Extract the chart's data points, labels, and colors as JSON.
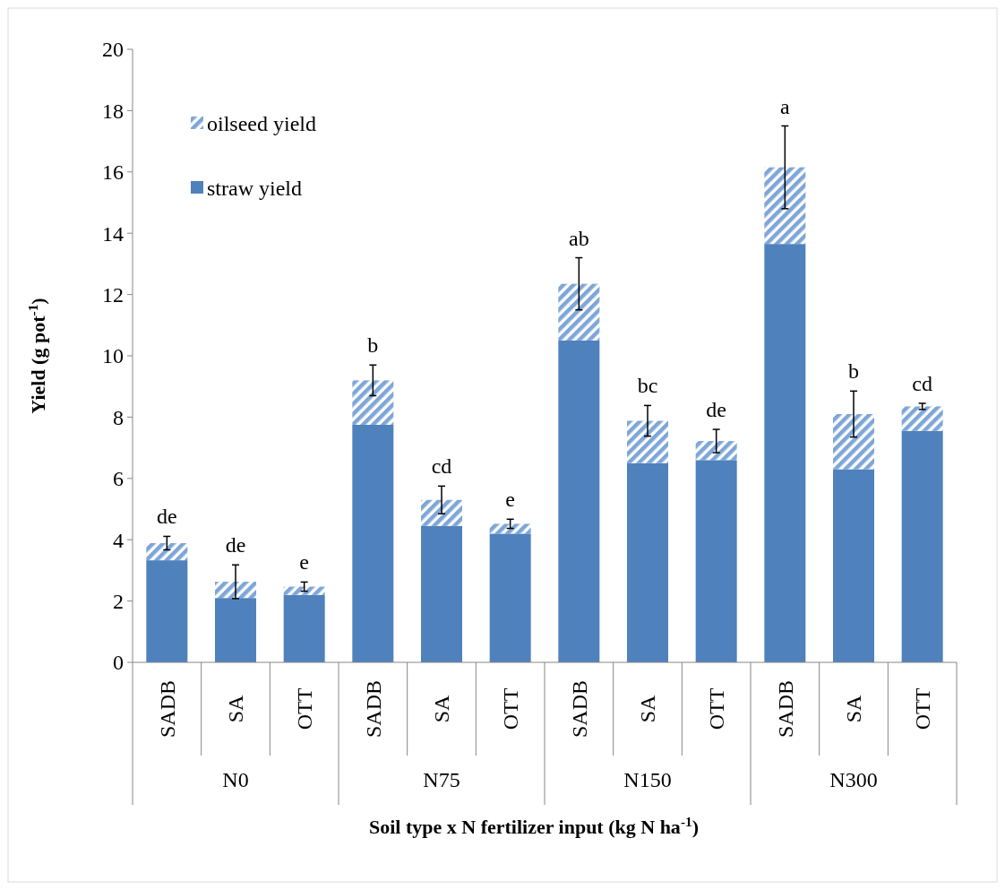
{
  "chart_data": {
    "type": "bar",
    "stacked": true,
    "xlabel": "Soil type x N fertilizer input (kg N ha$^{-1}$)",
    "ylabel": "Yield (g pot$^{-1}$)",
    "categories": [
      "SADB",
      "SA",
      "OTT",
      "SADB",
      "SA",
      "OTT",
      "SADB",
      "SA",
      "OTT",
      "SADB",
      "SA",
      "OTT"
    ],
    "series": [
      {
        "name": "straw yield",
        "color": "#4f81bd",
        "values": [
          3.33,
          2.1,
          2.2,
          7.75,
          4.45,
          4.2,
          10.5,
          6.5,
          6.6,
          13.65,
          6.3,
          7.55
        ]
      },
      {
        "name": "oilseed yield",
        "color": "#7ea6d8",
        "values": [
          0.56,
          0.53,
          0.27,
          1.45,
          0.85,
          0.32,
          1.85,
          1.38,
          0.62,
          2.5,
          1.8,
          0.8
        ],
        "errors": [
          0.22,
          0.55,
          0.15,
          0.5,
          0.45,
          0.15,
          0.85,
          0.5,
          0.38,
          1.35,
          0.75,
          0.1
        ]
      }
    ],
    "ylim": [
      0,
      20
    ],
    "yticks": [
      0,
      2,
      4,
      6,
      8,
      10,
      12,
      14,
      16,
      18,
      20
    ],
    "legend": "top left",
    "annotations": [
      "de",
      "de",
      "e",
      "b",
      "cd",
      "e",
      "ab",
      "bc",
      "de",
      "a",
      "b",
      "cd",
      "N0",
      "N75",
      "N150",
      "N300"
    ]
  }
}
